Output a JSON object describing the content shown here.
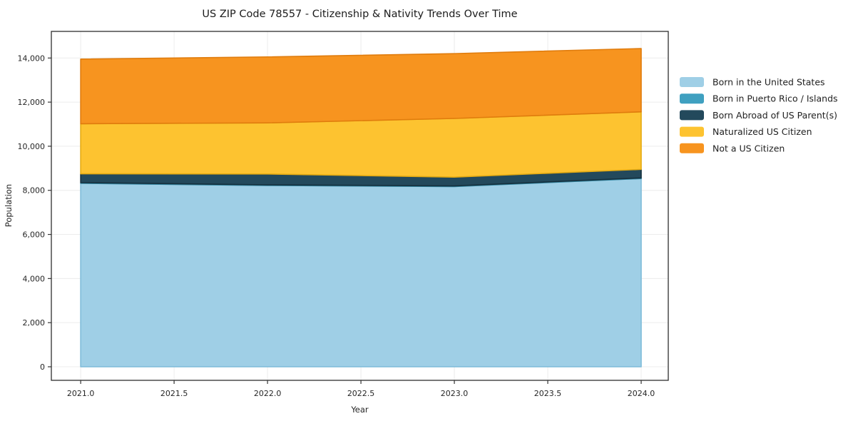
{
  "title": "US ZIP Code 78557 - Citizenship & Nativity Trends Over Time",
  "chart_data": {
    "type": "area",
    "stacked": true,
    "title": "US ZIP Code 78557 - Citizenship & Nativity Trends Over Time",
    "xlabel": "Year",
    "ylabel": "Population",
    "background": "#ffffff",
    "grid": true,
    "legend_position": "outside-right",
    "x": [
      2021,
      2022,
      2023,
      2024
    ],
    "series": [
      {
        "name": "Born in the United States",
        "color": "#9fcfe6",
        "edge": "#7fbcd9",
        "values": [
          8320,
          8220,
          8170,
          8535
        ]
      },
      {
        "name": "Born in Puerto Rico / Islands",
        "color": "#3fa0c0",
        "edge": "#31839e",
        "values": [
          30,
          30,
          30,
          30
        ]
      },
      {
        "name": "Born Abroad of US Parent(s)",
        "color": "#23495c",
        "edge": "#16313f",
        "values": [
          400,
          490,
          400,
          385
        ]
      },
      {
        "name": "Naturalized US Citizen",
        "color": "#fdc330",
        "edge": "#e5ab12",
        "values": [
          2270,
          2320,
          2660,
          2610
        ]
      },
      {
        "name": "Not a US Citizen",
        "color": "#f7941f",
        "edge": "#e07c0d",
        "values": [
          2930,
          2990,
          2940,
          2870
        ]
      }
    ],
    "totals": [
      13950,
      14050,
      14200,
      14430
    ],
    "xtick_values": [
      2021,
      2021.5,
      2022,
      2022.5,
      2023,
      2023.5,
      2024
    ],
    "xtick_labels": [
      "2021.0",
      "2021.5",
      "2022.0",
      "2022.5",
      "2023.0",
      "2023.5",
      "2024.0"
    ],
    "ytick_values": [
      0,
      2000,
      4000,
      6000,
      8000,
      10000,
      12000,
      14000
    ],
    "ytick_labels": [
      "0",
      "2,000",
      "4,000",
      "6,000",
      "8,000",
      "10,000",
      "12,000",
      "14,000"
    ],
    "xlim": [
      2020.843,
      2024.145
    ],
    "ylim": [
      -615,
      15207
    ]
  }
}
